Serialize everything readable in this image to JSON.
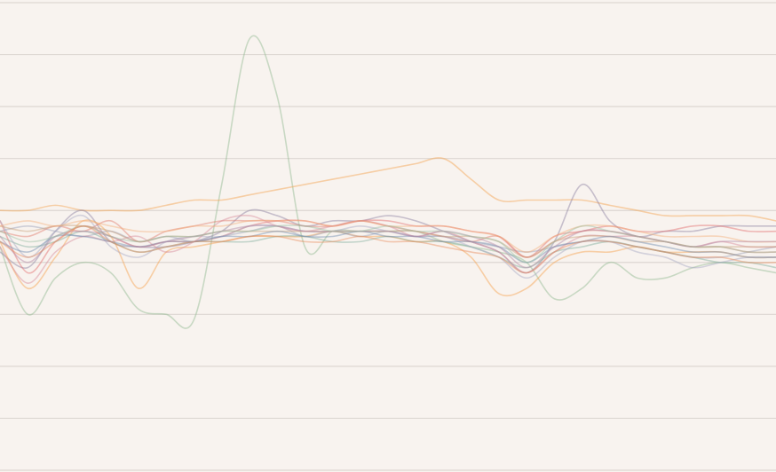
{
  "page": {
    "background": "#f8f3ef",
    "grid_color": "#ddd7d2"
  },
  "chart_data": {
    "type": "line",
    "title": "",
    "xlabel": "",
    "ylabel": "",
    "grid": true,
    "legend": "none",
    "xlim": [
      0,
      28
    ],
    "ylim": [
      -8,
      1
    ],
    "gridlines_y": [
      -8,
      -7,
      -6,
      -5,
      -4,
      -3,
      -2,
      -1,
      0,
      1
    ],
    "line_opacity": 0.45,
    "x": [
      0,
      1,
      2,
      3,
      4,
      5,
      6,
      7,
      8,
      9,
      10,
      11,
      12,
      13,
      14,
      15,
      16,
      17,
      18,
      19,
      20,
      21,
      22,
      23,
      24,
      25,
      26,
      27,
      28
    ],
    "series": [
      {
        "color": "#8fb98f",
        "values": [
          -3.7,
          -5.0,
          -4.3,
          -4.0,
          -4.2,
          -4.9,
          -5.0,
          -5.1,
          -2.5,
          0.3,
          -0.8,
          -3.7,
          -3.4,
          -3.4,
          -3.4,
          -3.4,
          -3.6,
          -3.7,
          -3.8,
          -4.0,
          -4.7,
          -4.5,
          -4.0,
          -4.3,
          -4.3,
          -4.1,
          -4.0,
          -4.1,
          -4.2
        ]
      },
      {
        "color": "#f5a04a",
        "values": [
          -3.0,
          -3.0,
          -2.9,
          -3.0,
          -3.0,
          -3.0,
          -2.9,
          -2.8,
          -2.8,
          -2.7,
          -2.6,
          -2.5,
          -2.4,
          -2.3,
          -2.2,
          -2.1,
          -2.0,
          -2.4,
          -2.8,
          -2.8,
          -2.8,
          -2.8,
          -2.9,
          -3.0,
          -3.1,
          -3.1,
          -3.1,
          -3.1,
          -3.2
        ]
      },
      {
        "color": "#8a7fa0",
        "values": [
          -3.8,
          -4.1,
          -3.4,
          -3.0,
          -3.6,
          -3.7,
          -3.7,
          -3.6,
          -3.4,
          -3.0,
          -3.1,
          -3.3,
          -3.2,
          -3.2,
          -3.1,
          -3.2,
          -3.4,
          -3.6,
          -3.8,
          -4.2,
          -3.6,
          -2.5,
          -3.2,
          -3.5,
          -3.4,
          -3.4,
          -3.3,
          -3.3,
          -3.3
        ]
      },
      {
        "color": "#e36a6a",
        "values": [
          -3.2,
          -4.2,
          -3.6,
          -3.3,
          -3.5,
          -3.7,
          -3.6,
          -3.6,
          -3.5,
          -3.3,
          -3.2,
          -3.2,
          -3.3,
          -3.2,
          -3.2,
          -3.3,
          -3.3,
          -3.4,
          -3.5,
          -3.9,
          -3.5,
          -3.4,
          -3.3,
          -3.4,
          -3.4,
          -3.3,
          -3.3,
          -3.4,
          -3.4
        ]
      },
      {
        "color": "#f7a04a",
        "values": [
          -3.6,
          -4.5,
          -3.9,
          -3.2,
          -3.5,
          -4.5,
          -3.8,
          -3.7,
          -3.6,
          -3.5,
          -3.5,
          -3.5,
          -3.4,
          -3.5,
          -3.5,
          -3.6,
          -3.6,
          -3.9,
          -4.6,
          -4.5,
          -4.0,
          -3.8,
          -3.8,
          -3.7,
          -3.8,
          -3.8,
          -3.8,
          -3.9,
          -3.9
        ]
      },
      {
        "color": "#9aa0b8",
        "values": [
          -3.4,
          -3.3,
          -3.4,
          -3.5,
          -3.4,
          -3.6,
          -3.5,
          -3.6,
          -3.5,
          -3.4,
          -3.3,
          -3.5,
          -3.4,
          -3.5,
          -3.4,
          -3.5,
          -3.5,
          -3.6,
          -3.7,
          -3.8,
          -3.7,
          -3.6,
          -3.6,
          -3.7,
          -3.8,
          -3.9,
          -3.9,
          -3.8,
          -3.7
        ]
      },
      {
        "color": "#e07a6a",
        "values": [
          -3.4,
          -3.5,
          -3.3,
          -3.4,
          -3.2,
          -3.6,
          -3.4,
          -3.3,
          -3.2,
          -3.2,
          -3.2,
          -3.3,
          -3.3,
          -3.2,
          -3.3,
          -3.4,
          -3.5,
          -3.6,
          -3.5,
          -3.9,
          -3.6,
          -3.4,
          -3.4,
          -3.5,
          -3.6,
          -3.7,
          -3.7,
          -3.8,
          -3.8
        ]
      },
      {
        "color": "#7fae9c",
        "values": [
          -3.5,
          -3.7,
          -3.6,
          -3.4,
          -3.6,
          -3.8,
          -3.7,
          -3.6,
          -3.6,
          -3.6,
          -3.5,
          -3.5,
          -3.6,
          -3.6,
          -3.5,
          -3.6,
          -3.6,
          -3.7,
          -3.9,
          -4.1,
          -3.8,
          -3.7,
          -3.6,
          -3.7,
          -3.8,
          -3.9,
          -4.0,
          -4.0,
          -4.1
        ]
      },
      {
        "color": "#a6a9c3",
        "values": [
          -3.2,
          -3.9,
          -3.4,
          -3.1,
          -3.7,
          -3.9,
          -3.6,
          -3.5,
          -3.5,
          -3.3,
          -3.3,
          -3.4,
          -3.4,
          -3.3,
          -3.4,
          -3.5,
          -3.5,
          -3.7,
          -3.9,
          -4.3,
          -3.9,
          -3.6,
          -3.6,
          -3.8,
          -3.9,
          -4.1,
          -4.0,
          -3.9,
          -3.9
        ]
      },
      {
        "color": "#d88a9a",
        "values": [
          -3.7,
          -4.4,
          -3.8,
          -3.5,
          -3.6,
          -3.5,
          -3.8,
          -3.6,
          -3.2,
          -3.1,
          -3.3,
          -3.4,
          -3.3,
          -3.2,
          -3.3,
          -3.5,
          -3.4,
          -3.6,
          -3.8,
          -4.2,
          -3.8,
          -3.5,
          -3.5,
          -3.5,
          -3.6,
          -3.7,
          -3.6,
          -3.7,
          -3.7
        ]
      },
      {
        "color": "#c7a07a",
        "values": [
          -3.3,
          -3.4,
          -3.3,
          -3.3,
          -3.4,
          -3.6,
          -3.5,
          -3.5,
          -3.4,
          -3.4,
          -3.4,
          -3.4,
          -3.4,
          -3.4,
          -3.4,
          -3.4,
          -3.5,
          -3.5,
          -3.6,
          -3.9,
          -3.6,
          -3.5,
          -3.5,
          -3.6,
          -3.6,
          -3.7,
          -3.7,
          -3.7,
          -3.7
        ]
      },
      {
        "color": "#6f8bb0",
        "values": [
          -3.6,
          -3.8,
          -3.5,
          -3.5,
          -3.6,
          -3.7,
          -3.6,
          -3.6,
          -3.5,
          -3.5,
          -3.4,
          -3.5,
          -3.5,
          -3.4,
          -3.5,
          -3.5,
          -3.6,
          -3.6,
          -3.7,
          -4.0,
          -3.7,
          -3.6,
          -3.5,
          -3.6,
          -3.7,
          -3.8,
          -3.8,
          -3.9,
          -3.9
        ]
      },
      {
        "color": "#f3b07a",
        "values": [
          -3.3,
          -3.2,
          -3.3,
          -3.2,
          -3.3,
          -3.4,
          -3.4,
          -3.3,
          -3.3,
          -3.2,
          -3.2,
          -3.2,
          -3.3,
          -3.2,
          -3.3,
          -3.3,
          -3.3,
          -3.4,
          -3.5,
          -3.8,
          -3.5,
          -3.3,
          -3.3,
          -3.4,
          -3.5,
          -3.5,
          -3.5,
          -3.6,
          -3.6
        ]
      },
      {
        "color": "#b48aa6",
        "values": [
          -3.5,
          -4.0,
          -3.5,
          -3.4,
          -3.5,
          -3.7,
          -3.6,
          -3.5,
          -3.4,
          -3.3,
          -3.3,
          -3.4,
          -3.4,
          -3.4,
          -3.4,
          -3.5,
          -3.4,
          -3.5,
          -3.7,
          -4.1,
          -3.7,
          -3.4,
          -3.4,
          -3.5,
          -3.6,
          -3.7,
          -3.6,
          -3.6,
          -3.6
        ]
      },
      {
        "color": "#9cc2a5",
        "values": [
          -3.4,
          -3.6,
          -3.5,
          -3.3,
          -3.5,
          -3.6,
          -3.5,
          -3.5,
          -3.4,
          -3.4,
          -3.3,
          -3.3,
          -3.4,
          -3.4,
          -3.3,
          -3.4,
          -3.4,
          -3.5,
          -3.6,
          -4.0,
          -3.6,
          -3.3,
          -3.4,
          -3.5,
          -3.6,
          -3.7,
          -3.7,
          -3.8,
          -3.8
        ]
      },
      {
        "color": "#e88c5a",
        "values": [
          -3.6,
          -3.9,
          -3.6,
          -3.3,
          -3.6,
          -3.8,
          -3.7,
          -3.6,
          -3.6,
          -3.5,
          -3.5,
          -3.6,
          -3.6,
          -3.5,
          -3.6,
          -3.6,
          -3.7,
          -3.8,
          -3.9,
          -4.2,
          -3.8,
          -3.6,
          -3.6,
          -3.7,
          -3.8,
          -3.9,
          -3.9,
          -4.0,
          -4.0
        ]
      }
    ]
  }
}
